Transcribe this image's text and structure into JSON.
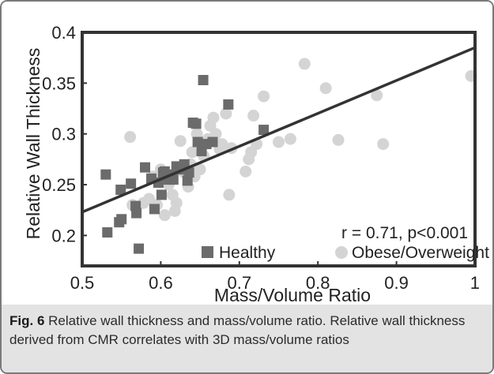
{
  "chart_data": {
    "type": "scatter",
    "xlabel": "Mass/Volume Ratio",
    "ylabel": "Relative Wall Thickness",
    "xlim": [
      0.5,
      1.0
    ],
    "ylim": [
      0.17,
      0.4
    ],
    "x_ticks": [
      "0.5",
      "0.6",
      "0.7",
      "0.8",
      "0.9",
      "1"
    ],
    "y_ticks": [
      "0.2",
      "0.25",
      "0.3",
      "0.35",
      "0.4"
    ],
    "x_tick_values": [
      0.5,
      0.6,
      0.7,
      0.8,
      0.9,
      1.0
    ],
    "y_tick_values": [
      0.2,
      0.25,
      0.3,
      0.35,
      0.4
    ],
    "grid": false,
    "legend_position": "bottom-right",
    "annotation": "r = 0.71, p<0.001",
    "series": [
      {
        "name": "Healthy",
        "marker": "square",
        "color": "#6b6b6b",
        "points": [
          [
            0.53,
            0.26
          ],
          [
            0.532,
            0.203
          ],
          [
            0.547,
            0.213
          ],
          [
            0.549,
            0.245
          ],
          [
            0.55,
            0.216
          ],
          [
            0.562,
            0.251
          ],
          [
            0.568,
            0.229
          ],
          [
            0.569,
            0.222
          ],
          [
            0.572,
            0.187
          ],
          [
            0.58,
            0.267
          ],
          [
            0.588,
            0.256
          ],
          [
            0.592,
            0.226
          ],
          [
            0.597,
            0.252
          ],
          [
            0.601,
            0.24
          ],
          [
            0.603,
            0.262
          ],
          [
            0.605,
            0.263
          ],
          [
            0.607,
            0.258
          ],
          [
            0.61,
            0.255
          ],
          [
            0.613,
            0.26
          ],
          [
            0.616,
            0.255
          ],
          [
            0.62,
            0.268
          ],
          [
            0.625,
            0.265
          ],
          [
            0.63,
            0.27
          ],
          [
            0.634,
            0.254
          ],
          [
            0.636,
            0.262
          ],
          [
            0.641,
            0.311
          ],
          [
            0.645,
            0.31
          ],
          [
            0.647,
            0.292
          ],
          [
            0.652,
            0.283
          ],
          [
            0.654,
            0.353
          ],
          [
            0.658,
            0.29
          ],
          [
            0.666,
            0.292
          ],
          [
            0.686,
            0.329
          ],
          [
            0.731,
            0.304
          ]
        ]
      },
      {
        "name": "Obese/Overweight",
        "marker": "circle",
        "color": "#d4d4d4",
        "points": [
          [
            0.561,
            0.297
          ],
          [
            0.564,
            0.23
          ],
          [
            0.578,
            0.232
          ],
          [
            0.585,
            0.236
          ],
          [
            0.59,
            0.258
          ],
          [
            0.595,
            0.23
          ],
          [
            0.6,
            0.265
          ],
          [
            0.605,
            0.22
          ],
          [
            0.61,
            0.25
          ],
          [
            0.615,
            0.24
          ],
          [
            0.618,
            0.224
          ],
          [
            0.62,
            0.232
          ],
          [
            0.625,
            0.293
          ],
          [
            0.63,
            0.262
          ],
          [
            0.635,
            0.248
          ],
          [
            0.638,
            0.27
          ],
          [
            0.64,
            0.282
          ],
          [
            0.643,
            0.258
          ],
          [
            0.646,
            0.3
          ],
          [
            0.65,
            0.265
          ],
          [
            0.655,
            0.278
          ],
          [
            0.66,
            0.295
          ],
          [
            0.663,
            0.308
          ],
          [
            0.667,
            0.316
          ],
          [
            0.67,
            0.3
          ],
          [
            0.675,
            0.285
          ],
          [
            0.678,
            0.29
          ],
          [
            0.683,
            0.32
          ],
          [
            0.687,
            0.24
          ],
          [
            0.69,
            0.286
          ],
          [
            0.708,
            0.263
          ],
          [
            0.712,
            0.275
          ],
          [
            0.715,
            0.282
          ],
          [
            0.718,
            0.318
          ],
          [
            0.722,
            0.29
          ],
          [
            0.731,
            0.337
          ],
          [
            0.75,
            0.292
          ],
          [
            0.765,
            0.295
          ],
          [
            0.783,
            0.369
          ],
          [
            0.81,
            0.345
          ],
          [
            0.826,
            0.294
          ],
          [
            0.875,
            0.338
          ],
          [
            0.883,
            0.29
          ],
          [
            0.995,
            0.357
          ]
        ]
      }
    ],
    "fit_line": {
      "x": [
        0.5,
        1.0
      ],
      "y": [
        0.223,
        0.385
      ],
      "color": "#333333"
    }
  },
  "caption": {
    "label": "Fig. 6",
    "text": "Relative wall thickness and mass/volume ratio. Relative wall thickness derived from CMR correlates with 3D mass/volume ratios"
  }
}
